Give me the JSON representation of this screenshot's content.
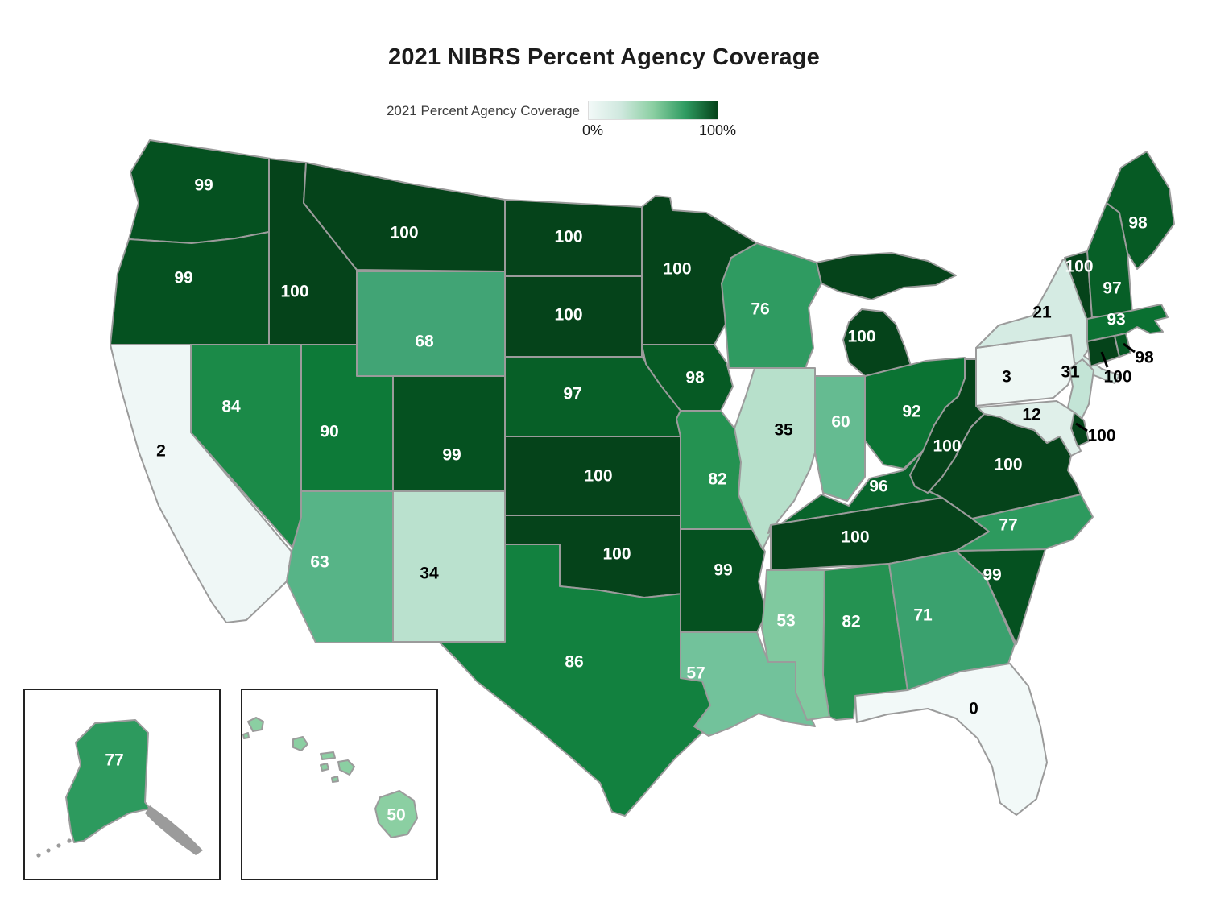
{
  "title": "2021 NIBRS Percent Agency Coverage",
  "legend": {
    "label": "2021 Percent Agency Coverage",
    "min_label": "0%",
    "max_label": "100%"
  },
  "colors": {
    "scale_stops": [
      [
        0,
        "#f2f9f8"
      ],
      [
        10,
        "#e3f1ec"
      ],
      [
        21,
        "#d5ebe3"
      ],
      [
        31,
        "#c3e4d6"
      ],
      [
        40,
        "#a8dabd"
      ],
      [
        50,
        "#8bcfa2"
      ],
      [
        57,
        "#72c29b"
      ],
      [
        63,
        "#57b487"
      ],
      [
        68,
        "#41a475"
      ],
      [
        76,
        "#2f9b61"
      ],
      [
        82,
        "#249251"
      ],
      [
        86,
        "#12813f"
      ],
      [
        90,
        "#0d7a38"
      ],
      [
        93,
        "#0a7031"
      ],
      [
        96,
        "#07632a"
      ],
      [
        98,
        "#065a24"
      ],
      [
        99,
        "#055120"
      ],
      [
        100,
        "#05431a"
      ]
    ],
    "state_border": "#9b9b9b",
    "inset_border": "#222222",
    "callout_line": "#000000",
    "label_light": "#ffffff",
    "label_dark": "#000000",
    "alaska_panhandle_gray": "#9b9b9b"
  },
  "chart_data": {
    "type": "choropleth",
    "geography": "us-states",
    "unit": "percent",
    "title": "2021 NIBRS Percent Agency Coverage",
    "legend_label": "2021 Percent Agency Coverage",
    "scale": {
      "min": 0,
      "max": 100,
      "min_label": "0%",
      "max_label": "100%"
    },
    "states": [
      {
        "abbr": "WA",
        "name": "Washington",
        "value": 99
      },
      {
        "abbr": "OR",
        "name": "Oregon",
        "value": 99
      },
      {
        "abbr": "CA",
        "name": "California",
        "value": 2
      },
      {
        "abbr": "NV",
        "name": "Nevada",
        "value": 84
      },
      {
        "abbr": "ID",
        "name": "Idaho",
        "value": 100
      },
      {
        "abbr": "MT",
        "name": "Montana",
        "value": 100
      },
      {
        "abbr": "WY",
        "name": "Wyoming",
        "value": 68
      },
      {
        "abbr": "UT",
        "name": "Utah",
        "value": 90
      },
      {
        "abbr": "CO",
        "name": "Colorado",
        "value": 99
      },
      {
        "abbr": "AZ",
        "name": "Arizona",
        "value": 63
      },
      {
        "abbr": "NM",
        "name": "New Mexico",
        "value": 34
      },
      {
        "abbr": "ND",
        "name": "North Dakota",
        "value": 100
      },
      {
        "abbr": "SD",
        "name": "South Dakota",
        "value": 100
      },
      {
        "abbr": "NE",
        "name": "Nebraska",
        "value": 97
      },
      {
        "abbr": "KS",
        "name": "Kansas",
        "value": 100
      },
      {
        "abbr": "OK",
        "name": "Oklahoma",
        "value": 100
      },
      {
        "abbr": "TX",
        "name": "Texas",
        "value": 86
      },
      {
        "abbr": "MN",
        "name": "Minnesota",
        "value": 100
      },
      {
        "abbr": "IA",
        "name": "Iowa",
        "value": 98
      },
      {
        "abbr": "MO",
        "name": "Missouri",
        "value": 82
      },
      {
        "abbr": "AR",
        "name": "Arkansas",
        "value": 99
      },
      {
        "abbr": "LA",
        "name": "Louisiana",
        "value": 57
      },
      {
        "abbr": "WI",
        "name": "Wisconsin",
        "value": 76
      },
      {
        "abbr": "IL",
        "name": "Illinois",
        "value": 35
      },
      {
        "abbr": "IN",
        "name": "Indiana",
        "value": 60
      },
      {
        "abbr": "MI",
        "name": "Michigan",
        "value": 100
      },
      {
        "abbr": "OH",
        "name": "Ohio",
        "value": 92
      },
      {
        "abbr": "KY",
        "name": "Kentucky",
        "value": 96
      },
      {
        "abbr": "TN",
        "name": "Tennessee",
        "value": 100
      },
      {
        "abbr": "MS",
        "name": "Mississippi",
        "value": 53
      },
      {
        "abbr": "AL",
        "name": "Alabama",
        "value": 82
      },
      {
        "abbr": "GA",
        "name": "Georgia",
        "value": 71
      },
      {
        "abbr": "FL",
        "name": "Florida",
        "value": 0
      },
      {
        "abbr": "SC",
        "name": "South Carolina",
        "value": 99
      },
      {
        "abbr": "NC",
        "name": "North Carolina",
        "value": 77
      },
      {
        "abbr": "VA",
        "name": "Virginia",
        "value": 100
      },
      {
        "abbr": "WV",
        "name": "West Virginia",
        "value": 100
      },
      {
        "abbr": "PA",
        "name": "Pennsylvania",
        "value": 3
      },
      {
        "abbr": "NY",
        "name": "New York",
        "value": 21
      },
      {
        "abbr": "NJ",
        "name": "New Jersey",
        "value": 31
      },
      {
        "abbr": "MD",
        "name": "Maryland",
        "value": 12
      },
      {
        "abbr": "DE",
        "name": "Delaware",
        "value": 100
      },
      {
        "abbr": "VT",
        "name": "Vermont",
        "value": 100
      },
      {
        "abbr": "NH",
        "name": "New Hampshire",
        "value": 97
      },
      {
        "abbr": "ME",
        "name": "Maine",
        "value": 98
      },
      {
        "abbr": "MA",
        "name": "Massachusetts",
        "value": 93
      },
      {
        "abbr": "CT",
        "name": "Connecticut",
        "value": 100
      },
      {
        "abbr": "RI",
        "name": "Rhode Island",
        "value": 98
      },
      {
        "abbr": "AK",
        "name": "Alaska",
        "value": 77
      },
      {
        "abbr": "HI",
        "name": "Hawaii",
        "value": 50
      }
    ]
  }
}
